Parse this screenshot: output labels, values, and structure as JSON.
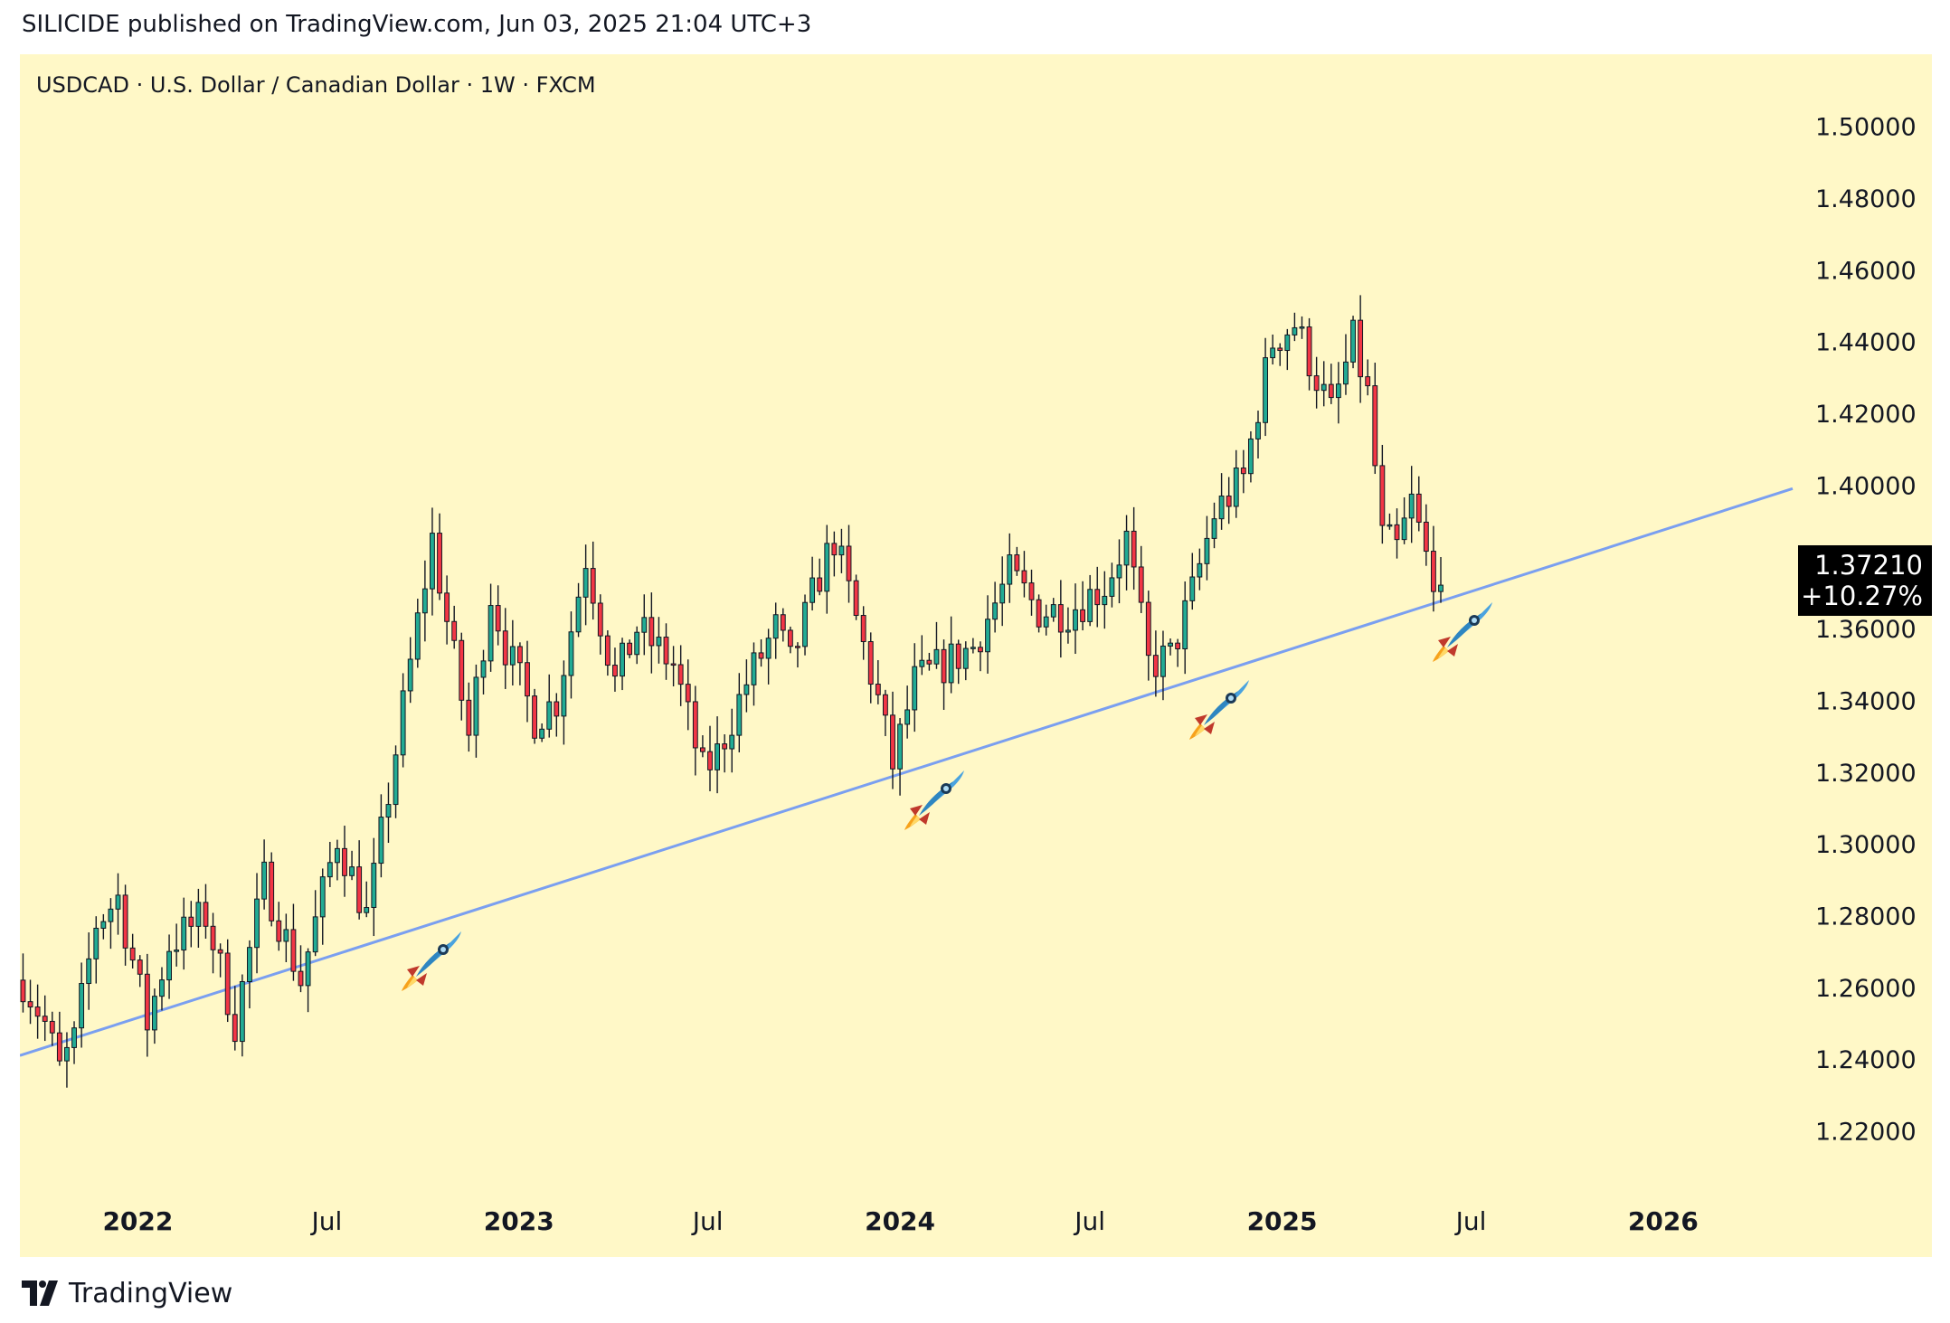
{
  "header": {
    "publish_text": "SILICIDE published on TradingView.com, Jun 03, 2025 21:04 UTC+3"
  },
  "symbol": {
    "title": "USDCAD · U.S. Dollar / Canadian Dollar · 1W · FXCM"
  },
  "price_label": {
    "value": "1.37210",
    "change": "+10.27%"
  },
  "footer": {
    "brand": "TradingView"
  },
  "icons": [
    "rocket-icon",
    "tradingview-logo-icon"
  ],
  "colors": {
    "background": "#fff8c7",
    "up": "#22ab94",
    "down": "#f23645",
    "trendline": "#7a9ff0",
    "text": "#131722"
  },
  "chart_data": {
    "type": "candlestick",
    "symbol": "USDCAD",
    "interval": "1W",
    "ylim": [
      1.205,
      1.51
    ],
    "yticks": [
      "1.22000",
      "1.24000",
      "1.26000",
      "1.28000",
      "1.30000",
      "1.32000",
      "1.34000",
      "1.36000",
      "1.38000",
      "1.40000",
      "1.42000",
      "1.44000",
      "1.46000",
      "1.48000",
      "1.50000"
    ],
    "xticks": [
      {
        "label": "2022",
        "date": "2022-01-01",
        "bold": true
      },
      {
        "label": "Jul",
        "date": "2022-07-01",
        "bold": false
      },
      {
        "label": "2023",
        "date": "2023-01-01",
        "bold": true
      },
      {
        "label": "Jul",
        "date": "2023-07-01",
        "bold": false
      },
      {
        "label": "2024",
        "date": "2024-01-01",
        "bold": true
      },
      {
        "label": "Jul",
        "date": "2024-07-01",
        "bold": false
      },
      {
        "label": "2025",
        "date": "2025-01-01",
        "bold": true
      },
      {
        "label": "Jul",
        "date": "2025-07-01",
        "bold": false
      },
      {
        "label": "2026",
        "date": "2026-01-01",
        "bold": true
      }
    ],
    "xlim": [
      "2021-09-10",
      "2026-05-05"
    ],
    "anchors": [
      {
        "date": "2021-09-13",
        "close": 1.262
      },
      {
        "date": "2021-10-04",
        "close": 1.25
      },
      {
        "date": "2021-10-18",
        "close": 1.237
      },
      {
        "date": "2021-11-01",
        "close": 1.245
      },
      {
        "date": "2021-11-22",
        "close": 1.278
      },
      {
        "date": "2021-12-13",
        "close": 1.285
      },
      {
        "date": "2022-01-10",
        "close": 1.25
      },
      {
        "date": "2022-01-31",
        "close": 1.272
      },
      {
        "date": "2022-03-07",
        "close": 1.28
      },
      {
        "date": "2022-04-04",
        "close": 1.25
      },
      {
        "date": "2022-05-02",
        "close": 1.29
      },
      {
        "date": "2022-06-06",
        "close": 1.262
      },
      {
        "date": "2022-07-11",
        "close": 1.302
      },
      {
        "date": "2022-08-08",
        "close": 1.28
      },
      {
        "date": "2022-08-15",
        "close": 1.29
      },
      {
        "date": "2022-09-19",
        "close": 1.35
      },
      {
        "date": "2022-10-10",
        "close": 1.385
      },
      {
        "date": "2022-10-24",
        "close": 1.362
      },
      {
        "date": "2022-11-14",
        "close": 1.33
      },
      {
        "date": "2022-12-05",
        "close": 1.37
      },
      {
        "date": "2022-12-19",
        "close": 1.355
      },
      {
        "date": "2023-01-16",
        "close": 1.335
      },
      {
        "date": "2023-02-06",
        "close": 1.34
      },
      {
        "date": "2023-03-06",
        "close": 1.38
      },
      {
        "date": "2023-04-03",
        "close": 1.345
      },
      {
        "date": "2023-04-24",
        "close": 1.36
      },
      {
        "date": "2023-05-29",
        "close": 1.35
      },
      {
        "date": "2023-06-26",
        "close": 1.32
      },
      {
        "date": "2023-07-10",
        "close": 1.325
      },
      {
        "date": "2023-08-07",
        "close": 1.345
      },
      {
        "date": "2023-09-04",
        "close": 1.36
      },
      {
        "date": "2023-09-18",
        "close": 1.35
      },
      {
        "date": "2023-10-16",
        "close": 1.375
      },
      {
        "date": "2023-10-30",
        "close": 1.385
      },
      {
        "date": "2023-11-13",
        "close": 1.37
      },
      {
        "date": "2023-12-11",
        "close": 1.34
      },
      {
        "date": "2023-12-25",
        "close": 1.322
      },
      {
        "date": "2024-01-15",
        "close": 1.345
      },
      {
        "date": "2024-02-12",
        "close": 1.35
      },
      {
        "date": "2024-03-11",
        "close": 1.355
      },
      {
        "date": "2024-04-15",
        "close": 1.375
      },
      {
        "date": "2024-05-13",
        "close": 1.365
      },
      {
        "date": "2024-06-10",
        "close": 1.365
      },
      {
        "date": "2024-07-15",
        "close": 1.372
      },
      {
        "date": "2024-08-05",
        "close": 1.385
      },
      {
        "date": "2024-08-26",
        "close": 1.35
      },
      {
        "date": "2024-09-16",
        "close": 1.352
      },
      {
        "date": "2024-10-07",
        "close": 1.37
      },
      {
        "date": "2024-10-28",
        "close": 1.392
      },
      {
        "date": "2024-11-25",
        "close": 1.402
      },
      {
        "date": "2024-12-09",
        "close": 1.422
      },
      {
        "date": "2024-12-23",
        "close": 1.44
      },
      {
        "date": "2025-01-13",
        "close": 1.445
      },
      {
        "date": "2025-02-03",
        "close": 1.43
      },
      {
        "date": "2025-02-17",
        "close": 1.42
      },
      {
        "date": "2025-03-10",
        "close": 1.44
      },
      {
        "date": "2025-03-24",
        "close": 1.425
      },
      {
        "date": "2025-04-07",
        "close": 1.385
      },
      {
        "date": "2025-04-21",
        "close": 1.382
      },
      {
        "date": "2025-05-05",
        "close": 1.395
      },
      {
        "date": "2025-05-19",
        "close": 1.38
      },
      {
        "date": "2025-06-02",
        "close": 1.3721
      }
    ],
    "trendline": {
      "x": [
        "2021-09-10",
        "2026-05-05"
      ],
      "y": [
        1.241,
        1.399
      ]
    }
  }
}
